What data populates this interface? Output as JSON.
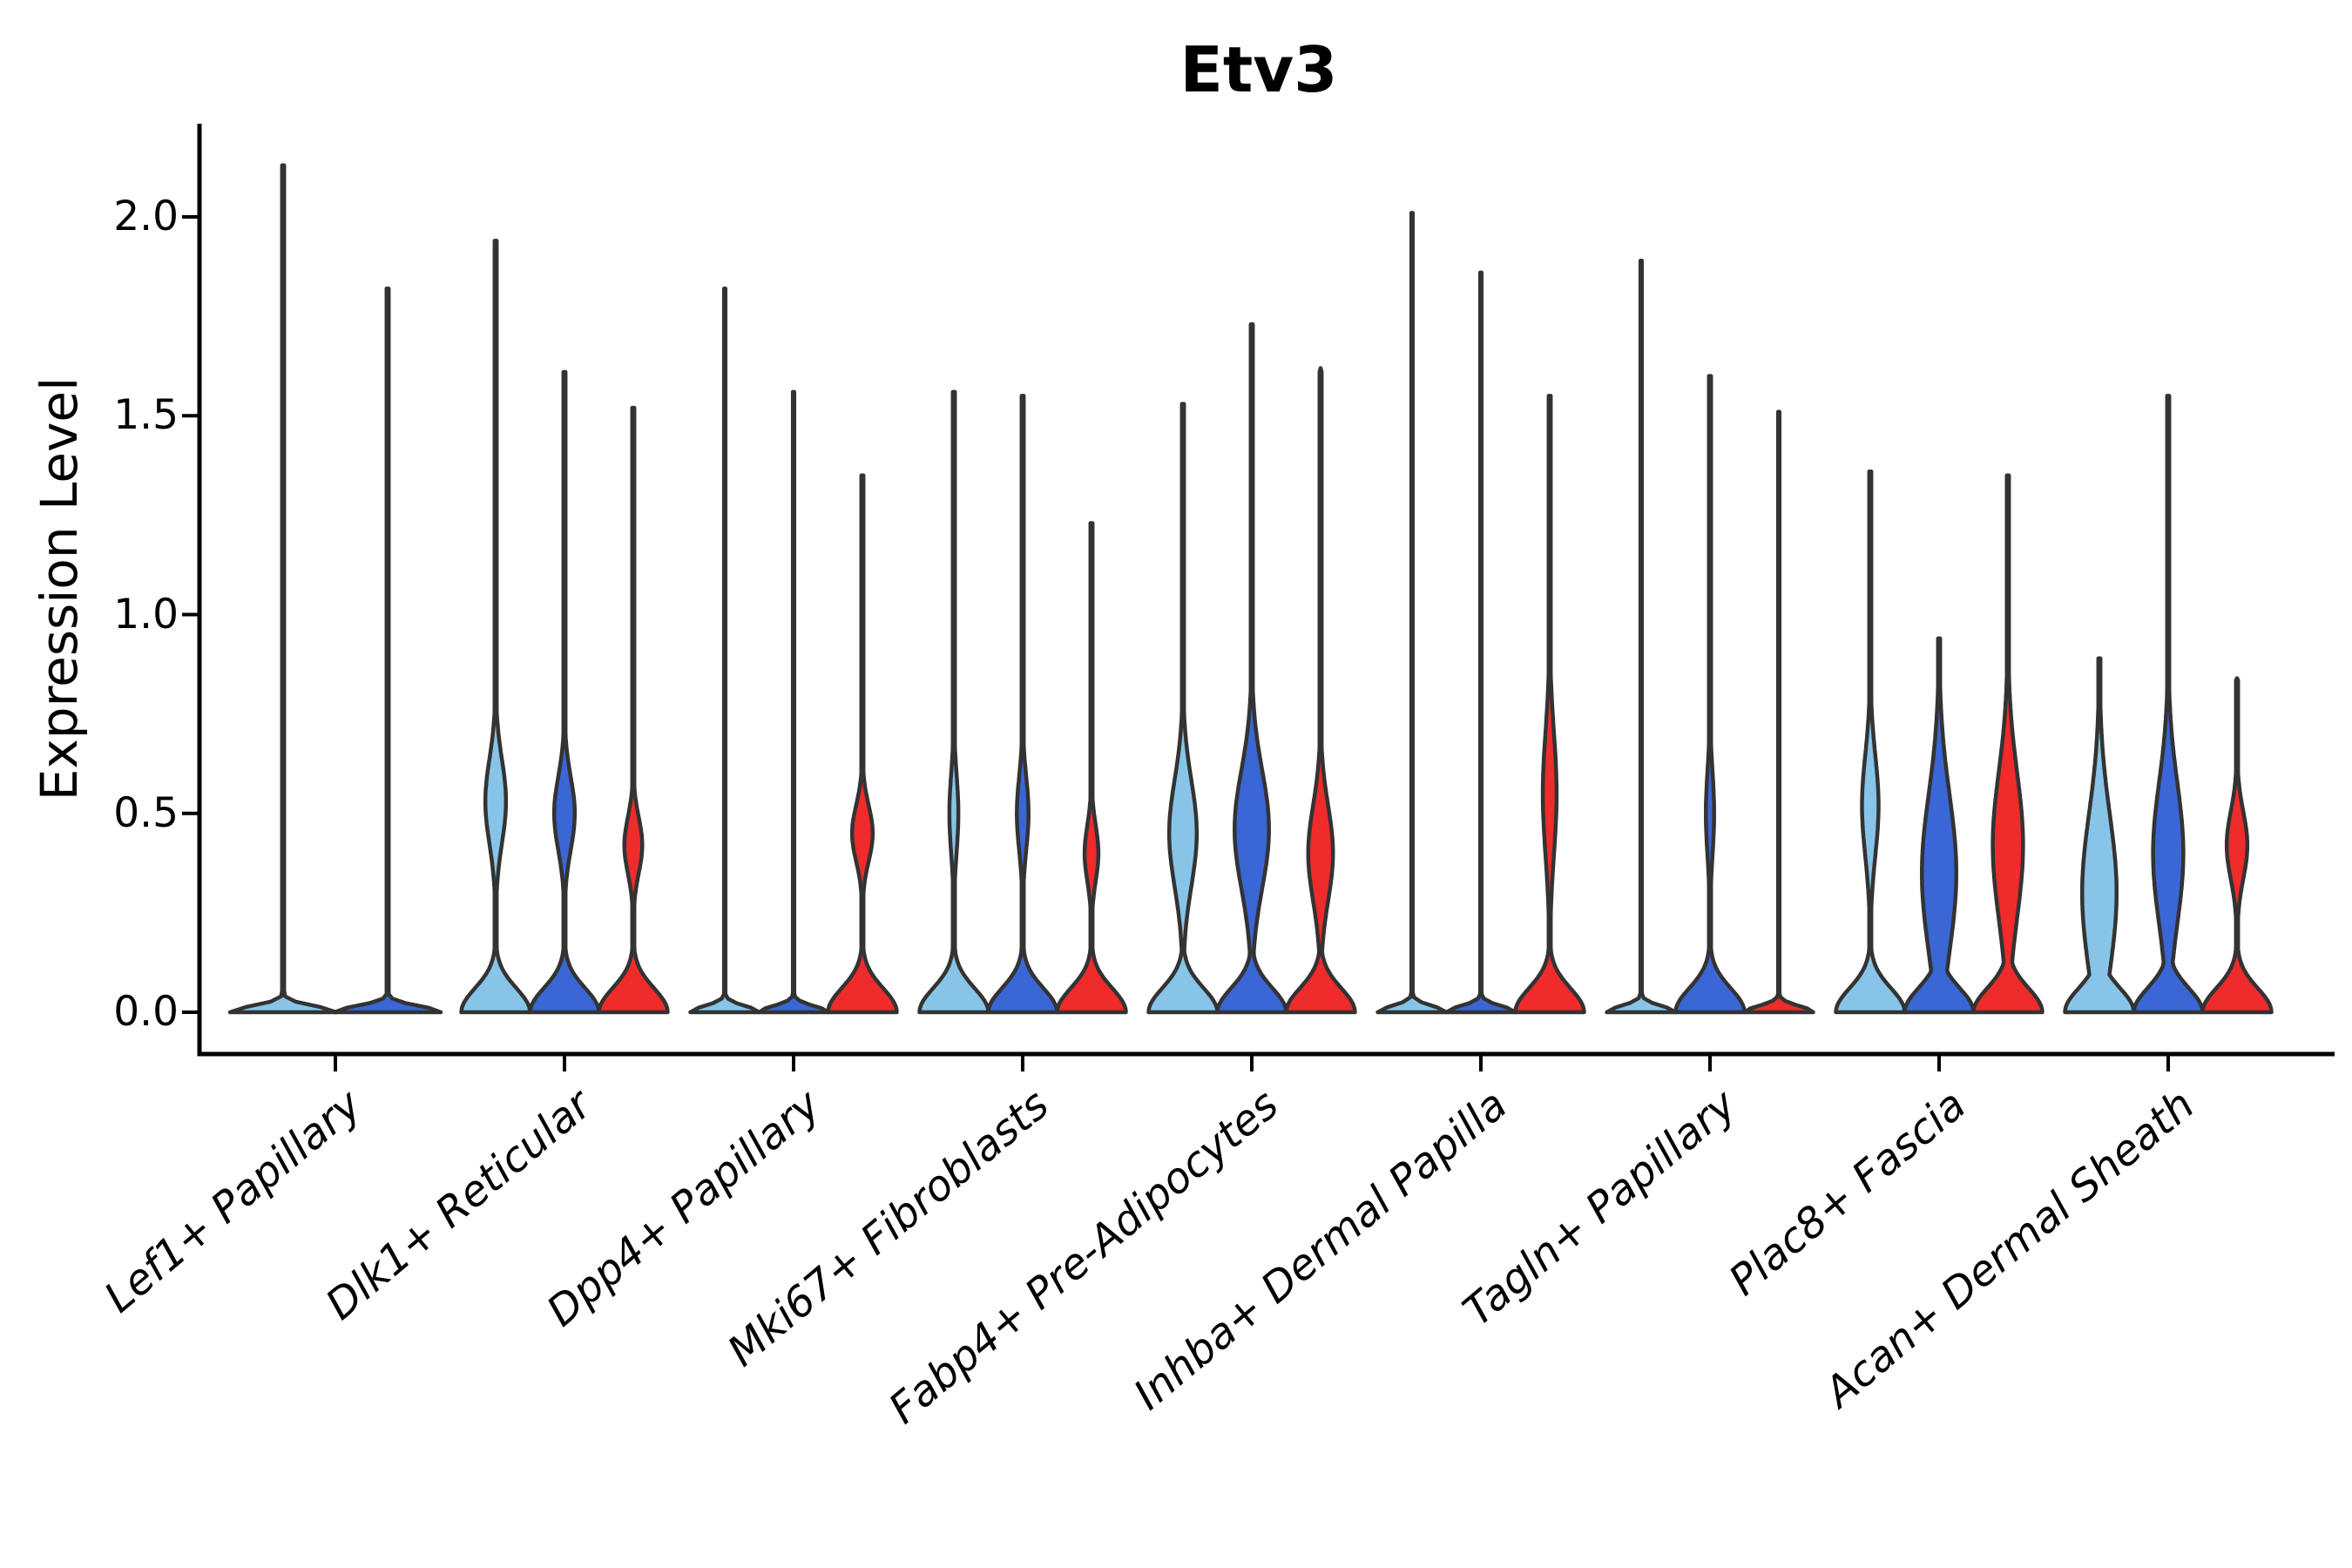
{
  "chart_data": {
    "type": "violin",
    "title": "Etv3",
    "ylabel": "Expression Level",
    "ylim": [
      -0.105,
      2.23
    ],
    "yticks": [
      0.0,
      0.5,
      1.0,
      1.5,
      2.0
    ],
    "ytick_labels": [
      "0.0",
      "0.5",
      "1.0",
      "1.5",
      "2.0"
    ],
    "grid": false,
    "legend": "none",
    "categories": [
      "Lef1+ Papillary",
      "Dlk1+ Reticular",
      "Dpp4+ Papillary",
      "Mki67+ Fibroblasts",
      "Fabp4+ Pre-Adipocytes",
      "Inhba+ Dermal Papilla",
      "Tagln+ Papillary",
      "Plac8+ Fascia",
      "Acan+ Dermal Sheath"
    ],
    "palette": {
      "light_blue": "#87C4E8",
      "dark_blue": "#3A66D6",
      "red": "#EF2B2B",
      "outline": "#333333",
      "axis": "#000000"
    },
    "groups": [
      {
        "category": "Lef1+ Papillary",
        "violins": [
          {
            "color": "light_blue",
            "max": 2.13,
            "flat": true
          },
          {
            "color": "dark_blue",
            "max": 1.82,
            "flat": true
          }
        ]
      },
      {
        "category": "Dlk1+ Reticular",
        "violins": [
          {
            "color": "light_blue",
            "max": 1.94,
            "flat": false,
            "peak": 0.53,
            "peak_width": 0.3,
            "spread": 0.15
          },
          {
            "color": "dark_blue",
            "max": 1.61,
            "flat": false,
            "peak": 0.5,
            "peak_width": 0.3,
            "spread": 0.13
          },
          {
            "color": "red",
            "max": 1.52,
            "flat": false,
            "peak": 0.42,
            "peak_width": 0.26,
            "spread": 0.1
          }
        ]
      },
      {
        "category": "Dpp4+ Papillary",
        "violins": [
          {
            "color": "light_blue",
            "max": 1.82,
            "flat": true
          },
          {
            "color": "dark_blue",
            "max": 1.56,
            "flat": true
          },
          {
            "color": "red",
            "max": 1.35,
            "flat": false,
            "peak": 0.45,
            "peak_width": 0.3,
            "spread": 0.1
          }
        ]
      },
      {
        "category": "Mki67+ Fibroblasts",
        "violins": [
          {
            "color": "light_blue",
            "max": 1.56,
            "flat": false,
            "peak": 0.5,
            "peak_width": 0.13,
            "spread": 0.14
          },
          {
            "color": "dark_blue",
            "max": 1.55,
            "flat": false,
            "peak": 0.5,
            "peak_width": 0.17,
            "spread": 0.13
          },
          {
            "color": "red",
            "max": 1.23,
            "flat": false,
            "peak": 0.4,
            "peak_width": 0.2,
            "spread": 0.1
          }
        ]
      },
      {
        "category": "Fabp4+ Pre-Adipocytes",
        "violins": [
          {
            "color": "light_blue",
            "max": 1.53,
            "flat": false,
            "peak": 0.45,
            "peak_width": 0.4,
            "spread": 0.19
          },
          {
            "color": "dark_blue",
            "max": 1.73,
            "flat": false,
            "peak": 0.46,
            "peak_width": 0.5,
            "spread": 0.21
          },
          {
            "color": "red",
            "max": 1.62,
            "flat": false,
            "peak": 0.4,
            "peak_width": 0.36,
            "spread": 0.17
          }
        ]
      },
      {
        "category": "Inhba+ Dermal Papilla",
        "violins": [
          {
            "color": "light_blue",
            "max": 2.01,
            "flat": true
          },
          {
            "color": "dark_blue",
            "max": 1.86,
            "flat": true
          },
          {
            "color": "red",
            "max": 1.55,
            "flat": false,
            "peak": 0.55,
            "peak_width": 0.2,
            "spread": 0.22
          }
        ]
      },
      {
        "category": "Tagln+ Papillary",
        "violins": [
          {
            "color": "light_blue",
            "max": 1.89,
            "flat": true
          },
          {
            "color": "dark_blue",
            "max": 1.6,
            "flat": false,
            "peak": 0.5,
            "peak_width": 0.12,
            "spread": 0.15
          },
          {
            "color": "red",
            "max": 1.51,
            "flat": true
          }
        ]
      },
      {
        "category": "Plac8+ Fascia",
        "violins": [
          {
            "color": "light_blue",
            "max": 1.36,
            "flat": false,
            "peak": 0.52,
            "peak_width": 0.24,
            "spread": 0.18
          },
          {
            "color": "dark_blue",
            "max": 0.94,
            "flat": false,
            "peak": 0.35,
            "peak_width": 0.5,
            "spread": 0.28
          },
          {
            "color": "red",
            "max": 1.35,
            "flat": false,
            "peak": 0.42,
            "peak_width": 0.44,
            "spread": 0.26
          }
        ]
      },
      {
        "category": "Acan+ Dermal Sheath",
        "violins": [
          {
            "color": "light_blue",
            "max": 0.89,
            "flat": false,
            "peak": 0.3,
            "peak_width": 0.5,
            "spread": 0.28
          },
          {
            "color": "dark_blue",
            "max": 1.55,
            "flat": false,
            "peak": 0.4,
            "peak_width": 0.44,
            "spread": 0.25
          },
          {
            "color": "red",
            "max": 0.84,
            "flat": false,
            "peak": 0.42,
            "peak_width": 0.3,
            "spread": 0.12
          }
        ]
      }
    ]
  }
}
